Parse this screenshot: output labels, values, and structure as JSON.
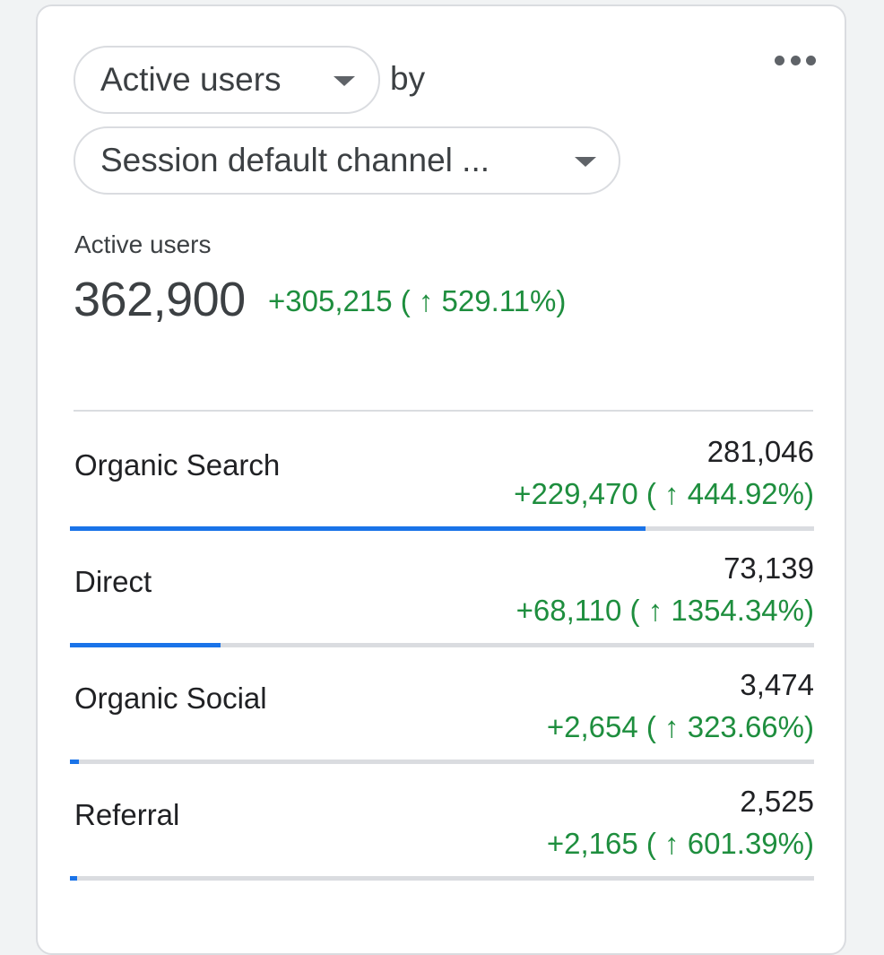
{
  "header": {
    "metric_selector": {
      "label": "Active users",
      "icon": "caret-down-icon"
    },
    "by_label": "by",
    "dimension_selector": {
      "label": "Session default channel ...",
      "icon": "caret-down-icon"
    },
    "menu_icon": "more-horiz-icon"
  },
  "summary": {
    "label": "Active users",
    "total": "362,900",
    "change": "+305,215 ( ↑ 529.11%)"
  },
  "rows": [
    {
      "name": "Organic Search",
      "value": "281,046",
      "change": "+229,470 ( ↑ 444.92%)",
      "share": 0.774
    },
    {
      "name": "Direct",
      "value": "73,139",
      "change": "+68,110 ( ↑ 1354.34%)",
      "share": 0.202
    },
    {
      "name": "Organic Social",
      "value": "3,474",
      "change": "+2,654 ( ↑ 323.66%)",
      "share": 0.012
    },
    {
      "name": "Referral",
      "value": "2,525",
      "change": "+2,165 ( ↑ 601.39%)",
      "share": 0.009
    }
  ],
  "colors": {
    "positive": "#1e8e3e",
    "bar_fill": "#1a73e8",
    "bar_track": "#dadce0"
  }
}
